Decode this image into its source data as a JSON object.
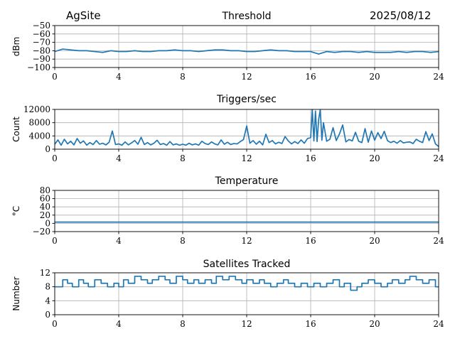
{
  "header": {
    "site": "AgSite",
    "date": "2025/08/12"
  },
  "style": {
    "line_color": "#1f77b4",
    "grid_color": "#b0b0b0",
    "axis_color": "#000000"
  },
  "chart_data": [
    {
      "type": "line",
      "title": "Threshold",
      "ylabel": "dBm",
      "xlim": [
        0,
        24
      ],
      "xticks": [
        0,
        4,
        8,
        12,
        16,
        20,
        24
      ],
      "ylim": [
        -100,
        -50
      ],
      "yticks": [
        -100,
        -90,
        -80,
        -70,
        -60,
        -50
      ],
      "ytick_labels": [
        "−100",
        "−90",
        "−80",
        "−70",
        "−60",
        "−50"
      ],
      "grid": true,
      "series": [
        {
          "x": [
            0,
            0.5,
            1,
            1.5,
            2,
            2.5,
            3,
            3.5,
            4,
            4.5,
            5,
            5.5,
            6,
            6.5,
            7,
            7.5,
            8,
            8.5,
            9,
            9.5,
            10,
            10.5,
            11,
            11.5,
            12,
            12.5,
            13,
            13.5,
            14,
            14.5,
            15,
            15.5,
            16,
            16.5,
            17,
            17.5,
            18,
            18.5,
            19,
            19.5,
            20,
            20.5,
            21,
            21.5,
            22,
            22.5,
            23,
            23.5,
            24
          ],
          "y": [
            -81,
            -78,
            -79,
            -80,
            -80,
            -81,
            -82,
            -80,
            -81,
            -81,
            -80,
            -81,
            -81,
            -80,
            -80,
            -79,
            -80,
            -80,
            -81,
            -80,
            -79,
            -79,
            -80,
            -80,
            -81,
            -81,
            -80,
            -79,
            -80,
            -80,
            -81,
            -81,
            -81,
            -84,
            -81,
            -82,
            -81,
            -81,
            -82,
            -81,
            -82,
            -82,
            -82,
            -81,
            -82,
            -81,
            -81,
            -82,
            -81
          ]
        }
      ]
    },
    {
      "type": "line",
      "title": "Triggers/sec",
      "ylabel": "Count",
      "xlim": [
        0,
        24
      ],
      "xticks": [
        0,
        4,
        8,
        12,
        16,
        20,
        24
      ],
      "ylim": [
        0,
        12000
      ],
      "yticks": [
        0,
        4000,
        8000,
        12000
      ],
      "ytick_labels": [
        "0",
        "4000",
        "8000",
        "12000"
      ],
      "grid": true,
      "series": [
        {
          "x": [
            0,
            0.2,
            0.4,
            0.6,
            0.8,
            1,
            1.2,
            1.4,
            1.6,
            1.8,
            2,
            2.2,
            2.4,
            2.6,
            2.8,
            3,
            3.2,
            3.4,
            3.6,
            3.8,
            4,
            4.2,
            4.4,
            4.6,
            4.8,
            5,
            5.2,
            5.4,
            5.6,
            5.8,
            6,
            6.2,
            6.4,
            6.6,
            6.8,
            7,
            7.2,
            7.4,
            7.6,
            7.8,
            8,
            8.2,
            8.4,
            8.6,
            8.8,
            9,
            9.2,
            9.4,
            9.6,
            9.8,
            10,
            10.2,
            10.4,
            10.6,
            10.8,
            11,
            11.2,
            11.4,
            11.6,
            11.8,
            12,
            12.2,
            12.4,
            12.6,
            12.8,
            13,
            13.2,
            13.4,
            13.6,
            13.8,
            14,
            14.2,
            14.4,
            14.6,
            14.8,
            15,
            15.2,
            15.4,
            15.6,
            15.8,
            16,
            16.1,
            16.2,
            16.3,
            16.4,
            16.5,
            16.6,
            16.7,
            16.8,
            17,
            17.2,
            17.4,
            17.6,
            17.8,
            18,
            18.2,
            18.4,
            18.6,
            18.8,
            19,
            19.2,
            19.4,
            19.6,
            19.8,
            20,
            20.2,
            20.4,
            20.6,
            20.8,
            21,
            21.2,
            21.4,
            21.6,
            21.8,
            22,
            22.2,
            22.4,
            22.6,
            22.8,
            23,
            23.2,
            23.4,
            23.6,
            23.8,
            24
          ],
          "y": [
            1500,
            2800,
            1200,
            3000,
            1600,
            2400,
            1300,
            3200,
            1800,
            2500,
            1200,
            2000,
            1400,
            2600,
            1500,
            1800,
            1300,
            2100,
            5500,
            1400,
            1600,
            1200,
            2200,
            1300,
            1900,
            2600,
            1500,
            3600,
            1400,
            2000,
            1300,
            1800,
            2700,
            1400,
            1700,
            1200,
            2300,
            1300,
            1600,
            1200,
            1500,
            1200,
            1800,
            1300,
            1600,
            1200,
            2400,
            1700,
            1400,
            2200,
            1600,
            1300,
            2800,
            1500,
            2100,
            1400,
            1700,
            1600,
            2300,
            2900,
            7000,
            1800,
            2600,
            1500,
            2400,
            1300,
            4500,
            2000,
            2600,
            1600,
            2100,
            1700,
            3800,
            2500,
            1600,
            2300,
            1700,
            2800,
            1800,
            3200,
            3500,
            12000,
            2500,
            11500,
            2300,
            9000,
            12000,
            2700,
            8000,
            2400,
            3000,
            6500,
            2600,
            4600,
            7300,
            2200,
            2900,
            2500,
            5100,
            2400,
            2000,
            6200,
            2100,
            5500,
            2700,
            5000,
            3200,
            5400,
            2600,
            2000,
            2400,
            1800,
            2600,
            1900,
            2100,
            2200,
            1700,
            3000,
            2400,
            2000,
            5300,
            2600,
            4600,
            1600,
            800
          ]
        }
      ]
    },
    {
      "type": "line",
      "title": "Temperature",
      "ylabel": "°C",
      "xlim": [
        0,
        24
      ],
      "xticks": [
        0,
        4,
        8,
        12,
        16,
        20,
        24
      ],
      "ylim": [
        -20,
        80
      ],
      "yticks": [
        -20,
        0,
        20,
        40,
        60,
        80
      ],
      "ytick_labels": [
        "−20",
        "0",
        "20",
        "40",
        "60",
        "80"
      ],
      "grid": true,
      "series": [
        {
          "x": [
            0,
            24
          ],
          "y": [
            3,
            3
          ]
        }
      ]
    },
    {
      "type": "line",
      "title": "Satellites Tracked",
      "ylabel": "Number",
      "xlim": [
        0,
        24
      ],
      "xticks": [
        0,
        4,
        8,
        12,
        16,
        20,
        24
      ],
      "ylim": [
        0,
        12
      ],
      "yticks": [
        0,
        4,
        8,
        12
      ],
      "ytick_labels": [
        "0",
        "4",
        "8",
        "12"
      ],
      "grid": true,
      "series": [
        {
          "step": true,
          "x": [
            0,
            0.5,
            0.8,
            1.1,
            1.5,
            1.8,
            2.1,
            2.5,
            2.9,
            3.3,
            3.7,
            4.0,
            4.3,
            4.6,
            5.0,
            5.4,
            5.8,
            6.1,
            6.5,
            6.9,
            7.2,
            7.6,
            8.0,
            8.3,
            8.7,
            9.0,
            9.4,
            9.8,
            10.1,
            10.5,
            10.9,
            11.3,
            11.7,
            12.0,
            12.4,
            12.8,
            13.1,
            13.5,
            13.9,
            14.3,
            14.6,
            15.0,
            15.4,
            15.8,
            16.2,
            16.6,
            17.0,
            17.4,
            17.8,
            18.1,
            18.5,
            18.9,
            19.2,
            19.6,
            20.0,
            20.4,
            20.8,
            21.1,
            21.5,
            21.9,
            22.2,
            22.6,
            23.0,
            23.4,
            23.8,
            24
          ],
          "y": [
            8,
            10,
            9,
            8,
            10,
            9,
            8,
            10,
            9,
            8,
            9,
            8,
            10,
            9,
            11,
            10,
            9,
            10,
            11,
            10,
            9,
            11,
            10,
            9,
            10,
            9,
            10,
            9,
            11,
            10,
            11,
            10,
            9,
            10,
            9,
            10,
            9,
            8,
            9,
            10,
            9,
            8,
            9,
            8,
            9,
            8,
            9,
            10,
            8,
            9,
            7,
            8,
            9,
            10,
            9,
            8,
            9,
            10,
            9,
            10,
            11,
            10,
            9,
            10,
            8,
            8
          ]
        }
      ]
    }
  ]
}
